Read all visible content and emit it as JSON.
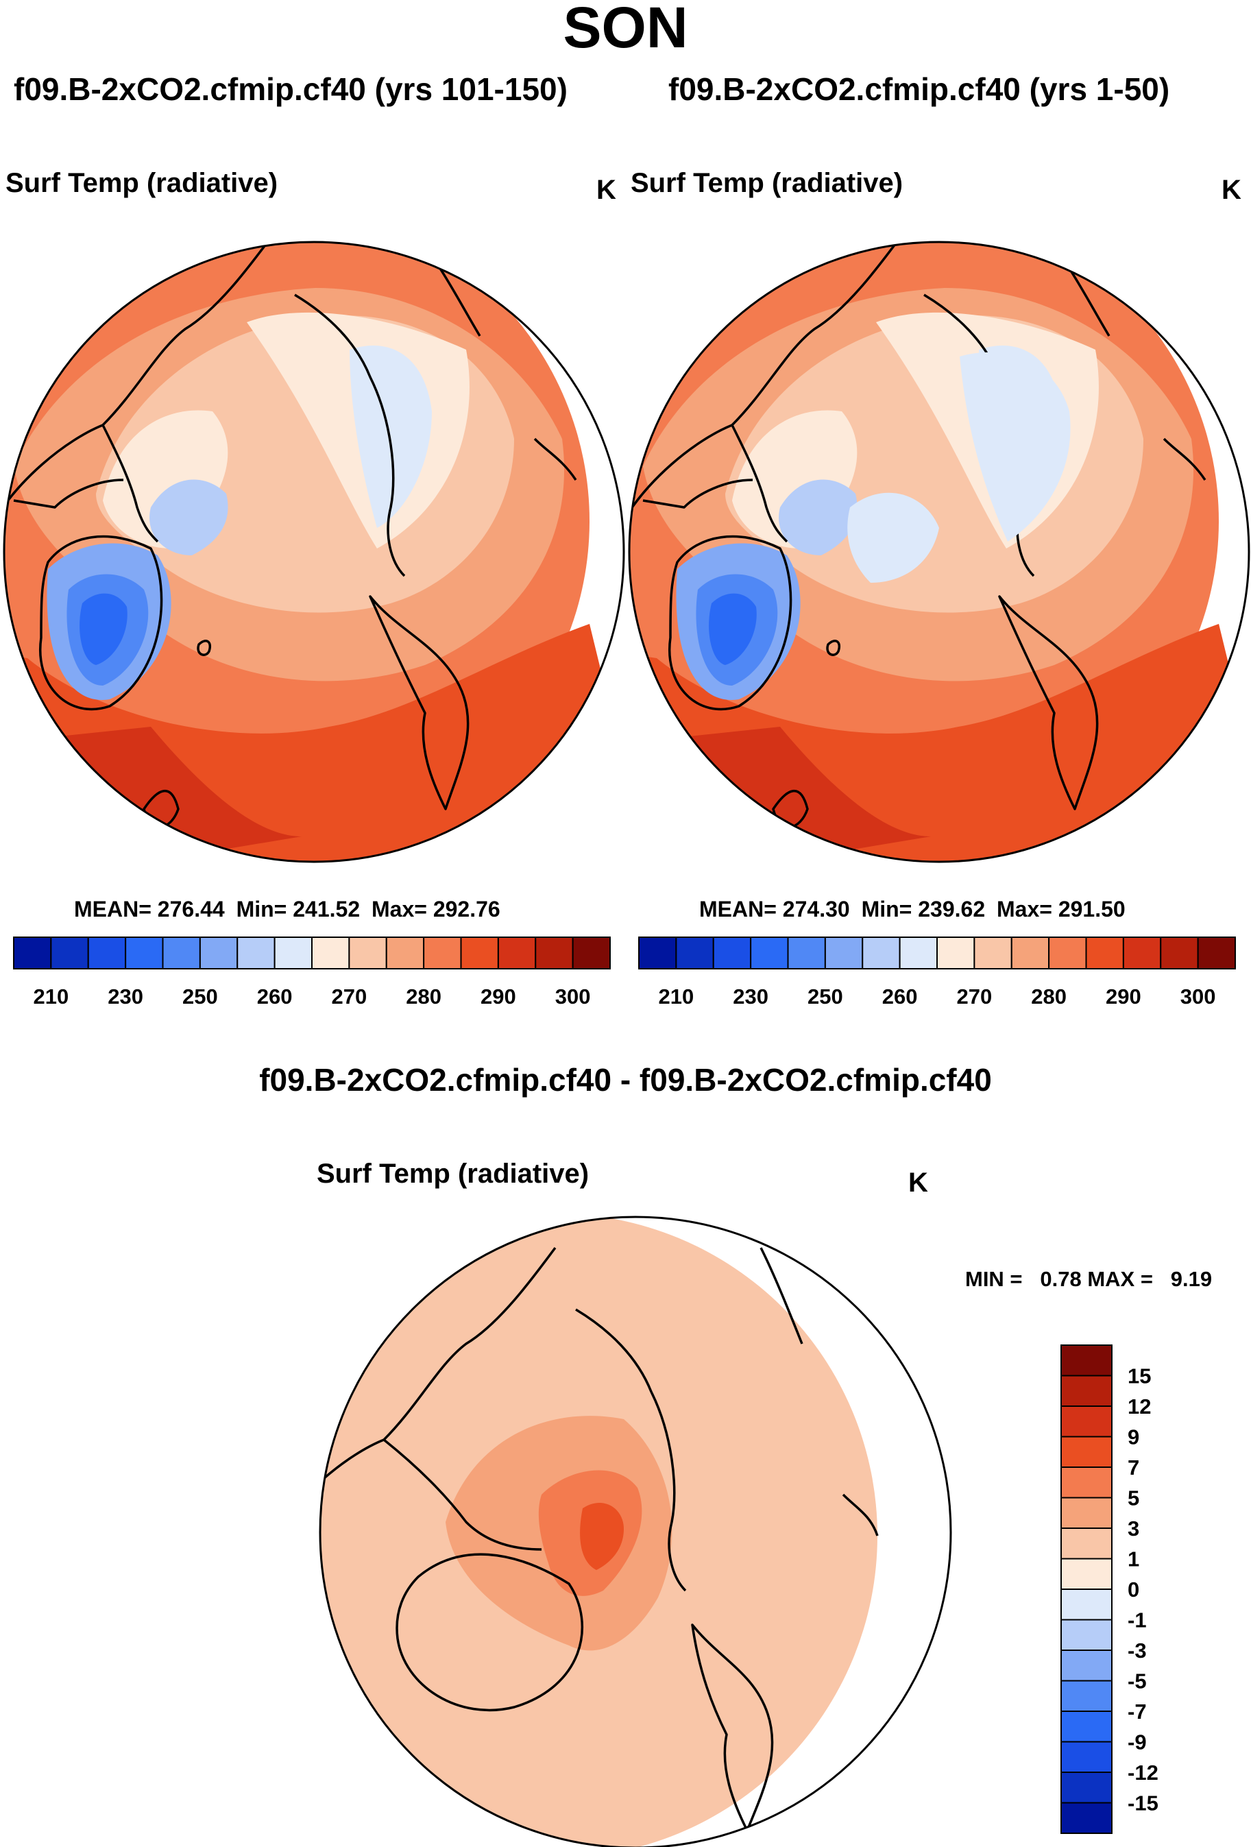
{
  "page_title": "SON",
  "panels": [
    {
      "case_title": "f09.B-2xCO2.cfmip.cf40 (yrs 101-150)",
      "variable": "Surf Temp (radiative)",
      "units": "K",
      "stats": {
        "mean_label": "MEAN=",
        "mean": "276.44",
        "min_label": "Min=",
        "min": "241.52",
        "max_label": "Max=",
        "max": "292.76"
      }
    },
    {
      "case_title": "f09.B-2xCO2.cfmip.cf40 (yrs 1-50)",
      "variable": "Surf Temp (radiative)",
      "units": "K",
      "stats": {
        "mean_label": "MEAN=",
        "mean": "274.30",
        "min_label": "Min=",
        "min": "239.62",
        "max_label": "Max=",
        "max": "291.50"
      }
    }
  ],
  "difference": {
    "title": "f09.B-2xCO2.cfmip.cf40 - f09.B-2xCO2.cfmip.cf40",
    "variable": "Surf Temp (radiative)",
    "units": "K",
    "minmax_text": "MIN =   0.78 MAX =   9.19"
  },
  "chart_data": [
    {
      "type": "heatmap",
      "projection": "north polar stereographic",
      "title": "f09.B-2xCO2.cfmip.cf40 (yrs 101-150)",
      "variable": "Surf Temp (radiative)",
      "units": "K",
      "mean": 276.44,
      "min": 241.52,
      "max": 292.76,
      "colorbar": {
        "orientation": "horizontal",
        "levels": [
          205,
          210,
          220,
          230,
          240,
          250,
          255,
          260,
          265,
          270,
          275,
          280,
          285,
          290,
          295,
          300
        ],
        "tick_labels": [
          "210",
          "230",
          "250",
          "260",
          "270",
          "280",
          "290",
          "300"
        ],
        "colors": [
          "#00159e",
          "#0b32c2",
          "#1a4fe6",
          "#2a6af5",
          "#5088f5",
          "#82a9f5",
          "#b6cdf8",
          "#dde9fa",
          "#fdeada",
          "#f9c6a8",
          "#f5a37a",
          "#f37b4f",
          "#ea4f22",
          "#d43317",
          "#b5200c",
          "#7d0a05"
        ]
      }
    },
    {
      "type": "heatmap",
      "projection": "north polar stereographic",
      "title": "f09.B-2xCO2.cfmip.cf40 (yrs 1-50)",
      "variable": "Surf Temp (radiative)",
      "units": "K",
      "mean": 274.3,
      "min": 239.62,
      "max": 291.5,
      "colorbar": {
        "orientation": "horizontal",
        "levels": [
          205,
          210,
          220,
          230,
          240,
          250,
          255,
          260,
          265,
          270,
          275,
          280,
          285,
          290,
          295,
          300
        ],
        "tick_labels": [
          "210",
          "230",
          "250",
          "260",
          "270",
          "280",
          "290",
          "300"
        ],
        "colors": [
          "#00159e",
          "#0b32c2",
          "#1a4fe6",
          "#2a6af5",
          "#5088f5",
          "#82a9f5",
          "#b6cdf8",
          "#dde9fa",
          "#fdeada",
          "#f9c6a8",
          "#f5a37a",
          "#f37b4f",
          "#ea4f22",
          "#d43317",
          "#b5200c",
          "#7d0a05"
        ]
      }
    },
    {
      "type": "heatmap",
      "projection": "north polar stereographic",
      "title": "f09.B-2xCO2.cfmip.cf40 - f09.B-2xCO2.cfmip.cf40",
      "variable": "Surf Temp (radiative)",
      "units": "K",
      "min": 0.78,
      "max": 9.19,
      "colorbar": {
        "orientation": "vertical",
        "tick_labels": [
          "15",
          "12",
          "9",
          "7",
          "5",
          "3",
          "1",
          "0",
          "-1",
          "-3",
          "-5",
          "-7",
          "-9",
          "-12",
          "-15"
        ],
        "colors": [
          "#7d0a05",
          "#b5200c",
          "#d43317",
          "#ea4f22",
          "#f37b4f",
          "#f5a37a",
          "#f9c6a8",
          "#fdeada",
          "#dde9fa",
          "#b6cdf8",
          "#82a9f5",
          "#5088f5",
          "#2a6af5",
          "#1a4fe6",
          "#0b32c2",
          "#00159e"
        ]
      }
    }
  ]
}
